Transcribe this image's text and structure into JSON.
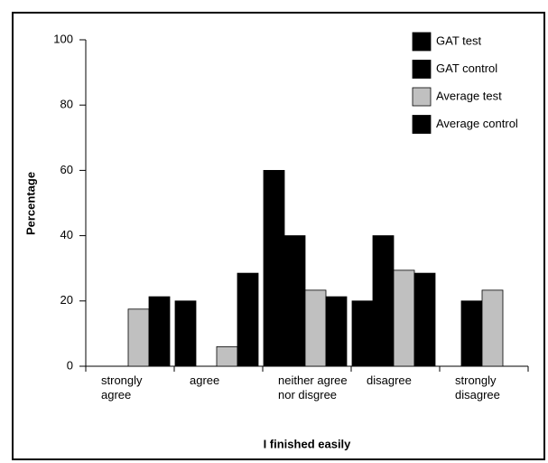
{
  "chart_data": {
    "type": "bar",
    "x_label": "I finished easily",
    "y_label": "Percentage",
    "categories": [
      "strongly agree",
      "agree",
      "neither agree nor disgree",
      "disagree",
      "strongly disagree"
    ],
    "series": [
      {
        "name": "GAT test",
        "color": "#000000",
        "values": [
          0,
          20,
          60,
          20,
          0
        ]
      },
      {
        "name": "GAT control",
        "color": "#000000",
        "values": [
          0,
          0,
          40,
          40,
          20
        ]
      },
      {
        "name": "Average test",
        "color": "#c0c0c0",
        "values": [
          17.5,
          6,
          23.3,
          29.4,
          23.3
        ]
      },
      {
        "name": "Average control",
        "color": "#000000",
        "values": [
          21.3,
          28.5,
          21.3,
          28.5,
          0
        ]
      }
    ],
    "ylim": [
      0,
      100
    ],
    "yticks": [
      0,
      20,
      40,
      60,
      80,
      100
    ],
    "grid": false,
    "legend": "upper right"
  }
}
